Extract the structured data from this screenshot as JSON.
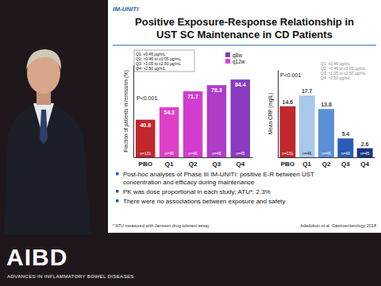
{
  "slide": {
    "tag": "IM-UNITI",
    "title": [
      "Positive Exposure-Response Relationship in",
      "UST SC Maintenance in CD Patients"
    ],
    "bullets": [
      [
        "Post-hoc analyses of Phase III IM-UNITI: positive E-R between UST",
        "concentration and efficacy during maintenance"
      ],
      [
        "PK was dose proportional in each study; ATU*: 2.3%"
      ],
      [
        "There were no associations between exposure and safety"
      ]
    ],
    "footnote": "* ATU measured with Janssen drug-tolerant assay",
    "citation": "Adedokun et al. Gastroenterology 2018",
    "logo": "AIBD",
    "logo_subtitle": "ADVANCES IN INFLAMMATORY BOWEL DISEASES"
  },
  "chart_data": [
    {
      "type": "bar",
      "y_label": "Fraction of patients in remission (%)",
      "categories": [
        "PBO",
        "Q1",
        "Q2",
        "Q3",
        "Q4"
      ],
      "values": [
        40.8,
        54.3,
        71.7,
        78.3,
        84.4
      ],
      "colors": [
        "#c1272d",
        "#e040c8",
        "#d23cd0",
        "#b03cc8",
        "#8a3cc0"
      ],
      "n_labels": [
        "n=131",
        "n=46",
        "n=46",
        "n=46",
        "n=45"
      ],
      "ylim": [
        0,
        100
      ],
      "tick_labels": "x",
      "data_labels": true,
      "annotation": "P<0.001",
      "quartile_key": [
        "Q1: ≤0.46 µg/mL",
        "Q2: >0.46 to ≤1.05 µg/mL",
        "Q3: >1.05 to ≤2.50 µg/mL",
        "Q4: >2.50 µg/mL"
      ],
      "legend_entries": [
        {
          "name": "q8w",
          "color": "#7b3fbf"
        },
        {
          "name": "q12w",
          "color": "#e43fc8"
        }
      ]
    },
    {
      "type": "bar",
      "y_label": "Mean CRP (mg/L)",
      "categories": [
        "PBO",
        "Q1",
        "Q2",
        "Q3",
        "Q4"
      ],
      "values": [
        14.6,
        17.7,
        13.8,
        5.4,
        2.6
      ],
      "colors": [
        "#c1272d",
        "#a9c8ec",
        "#5b8fd6",
        "#2b5bb5",
        "#1a3580"
      ],
      "n_labels": [
        "n=131",
        "n=46",
        "n=46",
        "n=46",
        "n=45"
      ],
      "ylim": [
        0,
        25
      ],
      "tick_labels": "x",
      "data_labels": true,
      "annotation": "P<0.001",
      "quartile_key": [
        "Q1: ≤0.46 µg/mL",
        "Q2: >0.46 to ≤1.05 µg/mL",
        "Q3: >1.05 to ≤2.50 µg/mL",
        "Q4: >2.50 µg/mL"
      ]
    }
  ]
}
